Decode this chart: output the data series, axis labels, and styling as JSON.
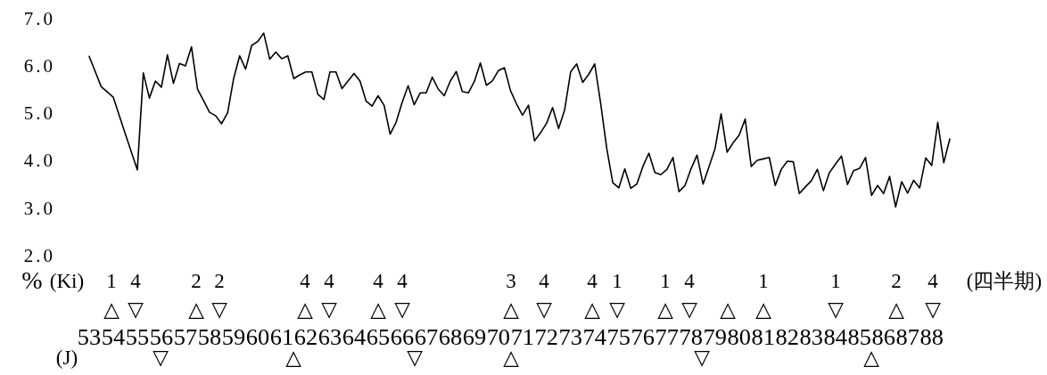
{
  "chart_data": {
    "type": "line",
    "ylabel": "%",
    "color": "#000000",
    "categories": [
      "53",
      null,
      null,
      null,
      "54",
      null,
      null,
      null,
      "55",
      null,
      null,
      null,
      "56",
      null,
      null,
      null,
      "57",
      null,
      null,
      null,
      "58",
      null,
      null,
      null,
      "59",
      null,
      null,
      null,
      "60",
      null,
      null,
      null,
      "61",
      null,
      null,
      null,
      "62",
      null,
      null,
      null,
      "63",
      null,
      null,
      null,
      "64",
      null,
      null,
      null,
      "65",
      null,
      null,
      null,
      "66",
      null,
      null,
      null,
      "67",
      null,
      null,
      null,
      "68",
      null,
      null,
      null,
      "69",
      null,
      null,
      null,
      "70",
      null,
      null,
      null,
      "71",
      null,
      null,
      null,
      "72",
      null,
      null,
      null,
      "73",
      null,
      null,
      null,
      "74",
      null,
      null,
      null,
      "75",
      null,
      null,
      null,
      "76",
      null,
      null,
      null,
      "77",
      null,
      null,
      null,
      "78",
      null,
      null,
      null,
      "79",
      null,
      null,
      null,
      "80",
      null,
      null,
      null,
      "81",
      null,
      null,
      null,
      "82",
      null,
      null,
      null,
      "83",
      null,
      null,
      null,
      "84",
      null,
      null,
      null,
      "85",
      null,
      null,
      null,
      "86",
      null,
      null,
      null,
      "87",
      null,
      null,
      null,
      "88",
      null,
      null,
      null
    ],
    "values": [
      6.24,
      5.92,
      5.6,
      5.49,
      5.38,
      4.99,
      4.61,
      4.23,
      3.85,
      5.89,
      5.36,
      5.72,
      5.59,
      6.27,
      5.67,
      6.09,
      6.04,
      6.44,
      5.55,
      5.31,
      5.06,
      4.99,
      4.82,
      5.05,
      5.77,
      6.25,
      5.97,
      6.47,
      6.55,
      6.73,
      6.18,
      6.33,
      6.19,
      6.25,
      5.77,
      5.85,
      5.91,
      5.91,
      5.44,
      5.33,
      5.91,
      5.91,
      5.56,
      5.72,
      5.88,
      5.72,
      5.3,
      5.19,
      5.41,
      5.21,
      4.6,
      4.85,
      5.27,
      5.62,
      5.22,
      5.47,
      5.47,
      5.8,
      5.55,
      5.41,
      5.72,
      5.92,
      5.5,
      5.47,
      5.71,
      6.1,
      5.63,
      5.72,
      5.94,
      6.0,
      5.52,
      5.24,
      5.0,
      5.21,
      4.46,
      4.63,
      4.83,
      5.16,
      4.72,
      5.11,
      5.91,
      6.08,
      5.69,
      5.86,
      6.08,
      5.24,
      4.3,
      3.58,
      3.47,
      3.87,
      3.46,
      3.55,
      3.92,
      4.2,
      3.79,
      3.75,
      3.86,
      4.11,
      3.39,
      3.52,
      3.87,
      4.16,
      3.55,
      3.92,
      4.3,
      5.03,
      4.22,
      4.42,
      4.58,
      4.92,
      3.92,
      4.05,
      4.08,
      4.11,
      3.52,
      3.86,
      4.03,
      4.02,
      3.35,
      3.49,
      3.62,
      3.86,
      3.41,
      3.79,
      3.97,
      4.14,
      3.54,
      3.83,
      3.88,
      4.11,
      3.31,
      3.52,
      3.35,
      3.71,
      3.07,
      3.6,
      3.36,
      3.63,
      3.47,
      4.1,
      3.94,
      4.85,
      4.0,
      4.5
    ],
    "ylim": [
      2.0,
      7.0
    ],
    "yticks": [
      {
        "value": 2,
        "label": "2.0"
      },
      {
        "value": 3,
        "label": "3.0"
      },
      {
        "value": 4,
        "label": "4.0"
      },
      {
        "value": 5,
        "label": "5.0"
      },
      {
        "value": 6,
        "label": "6.0"
      },
      {
        "value": 7,
        "label": "7.0"
      }
    ],
    "annotations": [
      "(Ki)",
      "(J)",
      "(四半期)",
      "1",
      "△",
      "4",
      "▽",
      "2",
      "△",
      "2",
      "▽",
      "4",
      "△",
      "4",
      "▽",
      "4",
      "△",
      "4",
      "▽",
      "3",
      "△",
      "4",
      "▽",
      "4",
      "△",
      "1",
      "▽",
      "1",
      "△",
      "4",
      "▽",
      "△",
      "1",
      "△",
      "1",
      "▽",
      "2",
      "△",
      "4",
      "▽",
      "▽",
      "△",
      "▽",
      "△",
      "▽",
      "△"
    ]
  }
}
